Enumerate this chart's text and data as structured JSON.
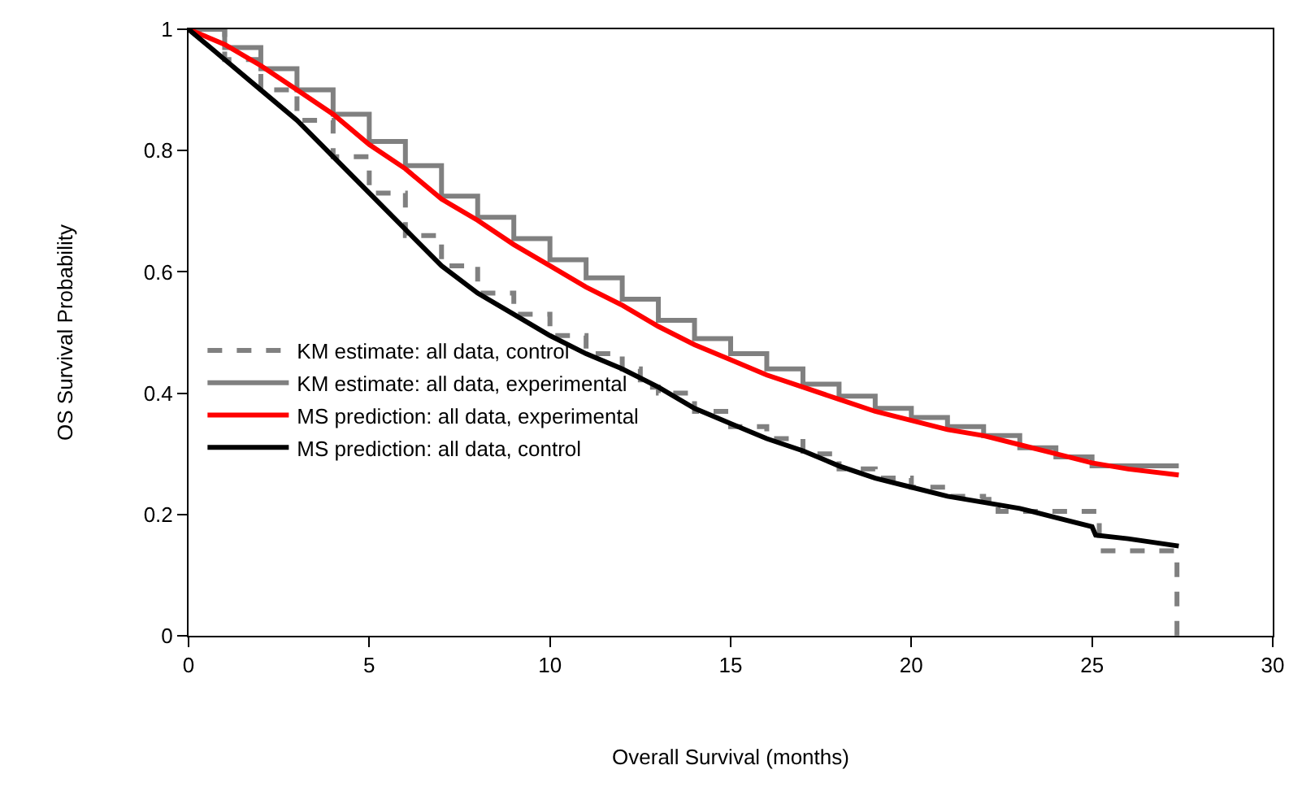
{
  "chart_data": {
    "type": "line",
    "xlabel": "Overall Survival (months)",
    "ylabel": "OS Survival Probability",
    "xlim": [
      0,
      30
    ],
    "xticks": [
      0,
      5,
      10,
      15,
      20,
      25,
      30
    ],
    "ylim": [
      0,
      1
    ],
    "yticks": [
      0,
      0.2,
      0.4,
      0.6,
      0.8,
      1
    ],
    "grid": false,
    "legend": "left",
    "marker": "none",
    "series": [
      {
        "name": "KM estimate: all data, control",
        "type": "step",
        "line_style": "dashed",
        "color": "#808080",
        "x": [
          0,
          1,
          2,
          3,
          4,
          5,
          6,
          7,
          8,
          9,
          10,
          11,
          12,
          12.5,
          13,
          14,
          15,
          16,
          17,
          18,
          19,
          20,
          21,
          22,
          22.4,
          25.2,
          27.3,
          27.35
        ],
        "values": [
          1,
          0.95,
          0.9,
          0.85,
          0.79,
          0.73,
          0.66,
          0.61,
          0.565,
          0.53,
          0.495,
          0.465,
          0.44,
          0.41,
          0.4,
          0.37,
          0.345,
          0.325,
          0.3,
          0.275,
          0.26,
          0.245,
          0.23,
          0.225,
          0.205,
          0.14,
          0.14,
          0
        ]
      },
      {
        "name": "KM estimate: all data, experimental",
        "type": "step",
        "line_style": "solid",
        "color": "#808080",
        "x": [
          0,
          1,
          2,
          3,
          4,
          5,
          6,
          7,
          8,
          9,
          10,
          11,
          12,
          13,
          14,
          15,
          16,
          17,
          18,
          19,
          20,
          21,
          22,
          23,
          24,
          25,
          26,
          27.4
        ],
        "values": [
          1,
          0.97,
          0.935,
          0.9,
          0.86,
          0.815,
          0.775,
          0.725,
          0.69,
          0.655,
          0.62,
          0.59,
          0.555,
          0.52,
          0.49,
          0.465,
          0.44,
          0.415,
          0.395,
          0.375,
          0.36,
          0.345,
          0.33,
          0.31,
          0.295,
          0.28,
          0.28,
          0.28
        ]
      },
      {
        "name": "MS prediction: all data, experimental",
        "line_style": "solid",
        "color": "#ff0000",
        "x": [
          0,
          1,
          2,
          3,
          4,
          5,
          6,
          7,
          8,
          9,
          10,
          11,
          12,
          13,
          14,
          15,
          16,
          17,
          18,
          19,
          20,
          21,
          22,
          23,
          24,
          25,
          26,
          27.4
        ],
        "values": [
          1,
          0.975,
          0.94,
          0.9,
          0.86,
          0.81,
          0.77,
          0.72,
          0.685,
          0.645,
          0.61,
          0.575,
          0.545,
          0.51,
          0.48,
          0.455,
          0.43,
          0.41,
          0.39,
          0.37,
          0.355,
          0.34,
          0.33,
          0.315,
          0.3,
          0.285,
          0.275,
          0.265
        ]
      },
      {
        "name": "MS prediction: all data, control",
        "line_style": "solid",
        "color": "#000000",
        "x": [
          0,
          1,
          2,
          3,
          4,
          5,
          6,
          7,
          8,
          9,
          10,
          11,
          12,
          13,
          14,
          15,
          16,
          17,
          18,
          19,
          20,
          21,
          22,
          23,
          24,
          25,
          25.1,
          26,
          27.4
        ],
        "values": [
          1,
          0.95,
          0.9,
          0.85,
          0.79,
          0.73,
          0.67,
          0.61,
          0.565,
          0.53,
          0.495,
          0.465,
          0.44,
          0.41,
          0.375,
          0.35,
          0.325,
          0.305,
          0.28,
          0.26,
          0.245,
          0.23,
          0.22,
          0.21,
          0.195,
          0.18,
          0.166,
          0.16,
          0.148
        ]
      }
    ]
  }
}
